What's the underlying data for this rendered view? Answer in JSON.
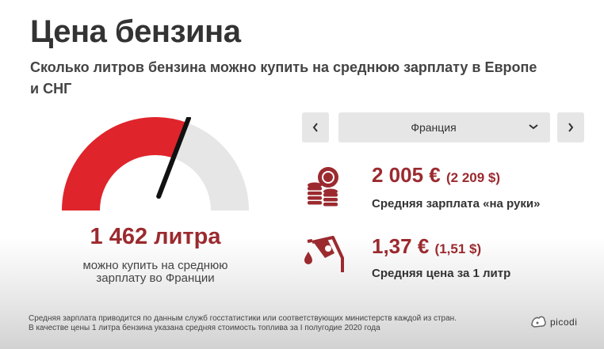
{
  "header": {
    "title": "Цена бензина",
    "subtitle": "Сколько литров бензина можно купить на среднюю зарплату в Европе и СНГ"
  },
  "gauge": {
    "value_text": "1 462 литра",
    "caption": "можно купить на среднюю зарплату во Франции",
    "level_fraction": 0.61,
    "fill_color": "#e0242b",
    "track_color": "#e6e6e6",
    "needle_color": "#111111"
  },
  "country_selector": {
    "prev_icon": "chevron-left-icon",
    "next_icon": "chevron-right-icon",
    "selected": "Франция"
  },
  "stats": {
    "salary": {
      "value": "2 005 €",
      "value_usd": "(2 209 $)",
      "label": "Средняя зарплата «на руки»",
      "icon": "coins-icon"
    },
    "price": {
      "value": "1,37 €",
      "value_usd": "(1,51 $)",
      "label": "Средняя цена за 1 литр",
      "icon": "fuel-nozzle-icon"
    }
  },
  "footnote": {
    "line1": "Средняя зарплата приводится по данным служб госстатистики или соответствующих министерств каждой из стран.",
    "line2": "В качестве цены 1 литра бензина указана средняя стоимость топлива за I полугодие 2020 года"
  },
  "brand": {
    "name": "picodi",
    "accent_color": "#9b2a2f"
  }
}
